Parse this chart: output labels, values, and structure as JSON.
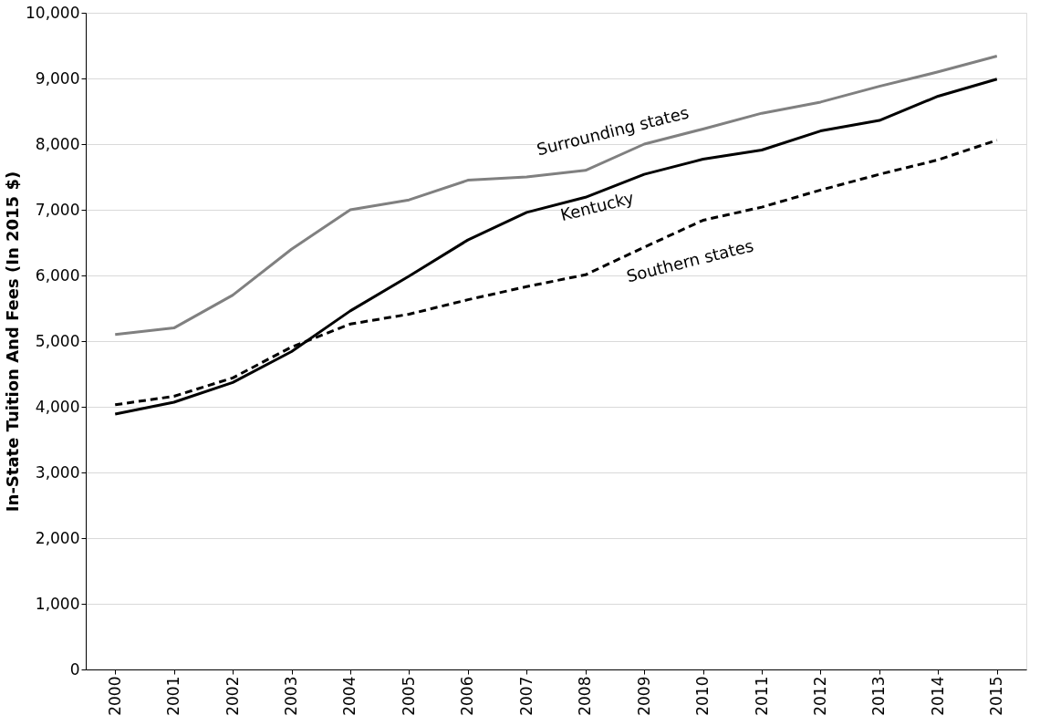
{
  "chart_data": {
    "type": "line",
    "ylabel": "In-State Tuition And Fees (In 2015 $)",
    "categories": [
      "2000",
      "2001",
      "2002",
      "2003",
      "2004",
      "2005",
      "2006",
      "2007",
      "2008",
      "2009",
      "2010",
      "2011",
      "2012",
      "2013",
      "2014",
      "2015"
    ],
    "series": [
      {
        "color": "#808080",
        "line_style": "solid",
        "values": [
          5100,
          5200,
          5700,
          6400,
          7000,
          7150,
          7450,
          7500,
          7600,
          8000,
          8230,
          8470,
          8640,
          8880,
          9100,
          9340
        ]
      },
      {
        "color": "#000000",
        "line_style": "solid",
        "values": [
          3890,
          4070,
          4370,
          4840,
          5460,
          5990,
          6540,
          6960,
          7190,
          7540,
          7770,
          7910,
          8200,
          8360,
          8730,
          8990
        ]
      },
      {
        "color": "#000000",
        "line_style": "dashed",
        "values": [
          4030,
          4160,
          4440,
          4910,
          5260,
          5410,
          5630,
          5830,
          6010,
          6430,
          6840,
          7040,
          7300,
          7540,
          7760,
          8060
        ]
      }
    ],
    "annotations": [
      "Surrounding states",
      "Kentucky",
      "Southern states"
    ],
    "ylim": [
      0,
      10000
    ],
    "yticks": [
      0,
      {
        "value": 1000,
        "label": "1,000"
      },
      {
        "value": 2000,
        "label": "2,000"
      },
      {
        "value": 3000,
        "label": "3,000"
      },
      {
        "value": 4000,
        "label": "4,000"
      },
      {
        "value": 5000,
        "label": "5,000"
      },
      {
        "value": 6000,
        "label": "6,000"
      },
      {
        "value": 7000,
        "label": "7,000"
      },
      {
        "value": 8000,
        "label": "8,000"
      },
      {
        "value": 9000,
        "label": "9,000"
      },
      {
        "value": 10000,
        "label": "10,000"
      }
    ],
    "grid": "y"
  }
}
